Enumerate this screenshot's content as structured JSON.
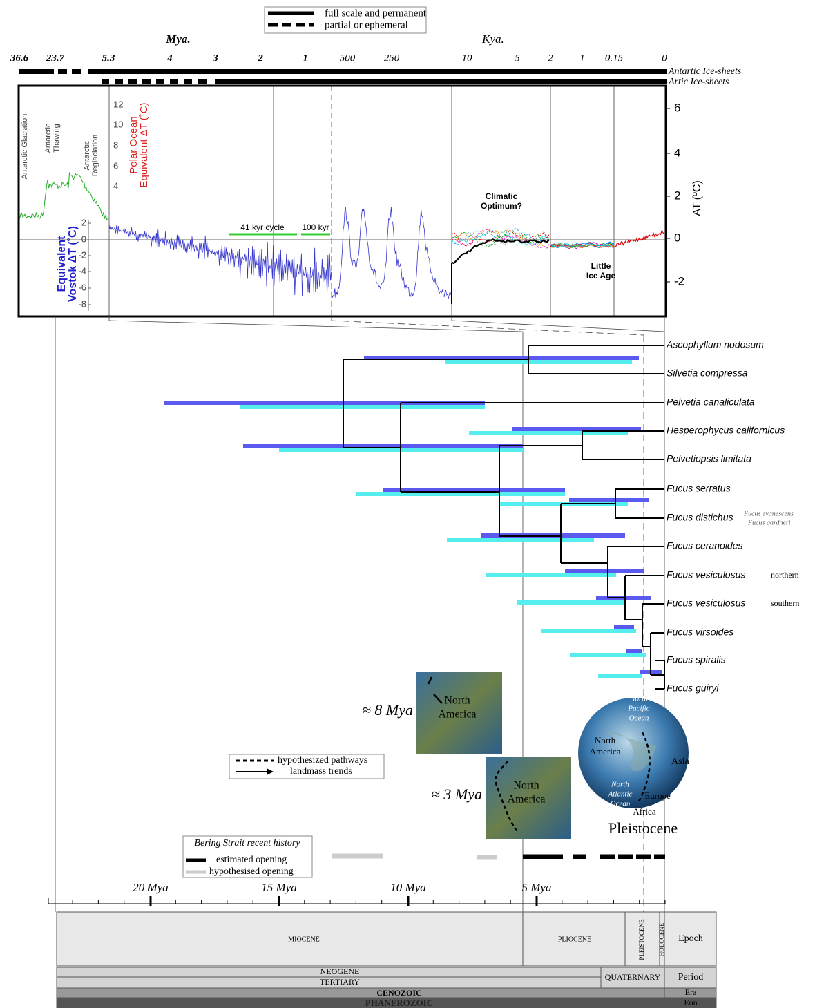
{
  "legend_top": [
    "full scale and permanent",
    "partial or ephemeral"
  ],
  "scale_headers": [
    "Mya.",
    "Kya."
  ],
  "top_ticks": [
    "36.6",
    "23.7",
    "5.3",
    "4",
    "3",
    "2",
    "1",
    "500",
    "250",
    "10",
    "5",
    "2",
    "1",
    "0.15",
    "0"
  ],
  "ice_sheets": [
    "Antartic Ice-sheets",
    "Artic Ice-sheets"
  ],
  "panel": {
    "events": [
      [
        "Antarctic Glaciation"
      ],
      [
        "Antarctic",
        "Thawing"
      ],
      [
        "Antarctic",
        "Reglaciation"
      ]
    ],
    "polar_axis": {
      "title": [
        "Polar Ocean",
        "Equivalent ΔT (˚C)"
      ],
      "ticks": [
        "12",
        "10",
        "8",
        "6",
        "4"
      ]
    },
    "vostok_axis": {
      "title": [
        "Equivalent",
        "Vostok ΔT (˚C)"
      ],
      "ticks": [
        "2",
        "0",
        "-2",
        "-4",
        "-6",
        "-8"
      ]
    },
    "right_axis": {
      "title": "AT (ºC)",
      "ticks": [
        "6",
        "4",
        "2",
        "0",
        "-2"
      ]
    },
    "cycles": [
      "41 kyr cycle",
      "100 kyr"
    ],
    "climatic_optimum": [
      "Climatic",
      "Optimum?"
    ],
    "little_ice_age": [
      "Little",
      "Ice Age"
    ]
  },
  "species": [
    "Ascophyllum nodosum",
    "Silvetia compressa",
    "Pelvetia canaliculata",
    "Hesperophycus californicus",
    "Pelvetiopsis limitata",
    "Fucus serratus",
    "Fucus distichus",
    "Fucus ceranoides",
    "Fucus vesiculosus",
    "Fucus vesiculosus",
    "Fucus virsoides",
    "Fucus spiralis",
    "Fucus guiryi"
  ],
  "synonyms": [
    "Fucus evanescens",
    "Fucus gardneri"
  ],
  "populations": [
    "northern",
    "southern"
  ],
  "maps": {
    "ages": [
      "≈ 8 Mya",
      "≈ 3 Mya"
    ],
    "north_america": [
      "North",
      "America"
    ],
    "globe": {
      "pacific": [
        "North",
        "Pacific",
        "Ocean"
      ],
      "america": [
        "North",
        "America"
      ],
      "asia": "Asia",
      "atlantic": [
        "North",
        "Atlantic",
        "Ocean"
      ],
      "europe": "Europe",
      "africa": "Africa"
    },
    "caption": "Pleistocene"
  },
  "pathway_legend": [
    "hypothesized pathways",
    "landmass trends"
  ],
  "bering": {
    "title": "Bering Strait recent history",
    "items": [
      "estimated opening",
      "hypothesised opening"
    ]
  },
  "time_axis": [
    "20 Mya",
    "15 Mya",
    "10 Mya",
    "5 Mya"
  ],
  "timescale": {
    "epochs": [
      "MIOCENE",
      "PLIOCENE",
      "PLEISTOCENE",
      "HOLOCENE"
    ],
    "periods": [
      "NEOGENE",
      "TERTIARY",
      "QUATERNARY"
    ],
    "eras": [
      "CENOZOIC"
    ],
    "eons": [
      "PHANEROZOIC"
    ],
    "headers": [
      "Epoch",
      "Period",
      "Era",
      "Eon"
    ]
  }
}
